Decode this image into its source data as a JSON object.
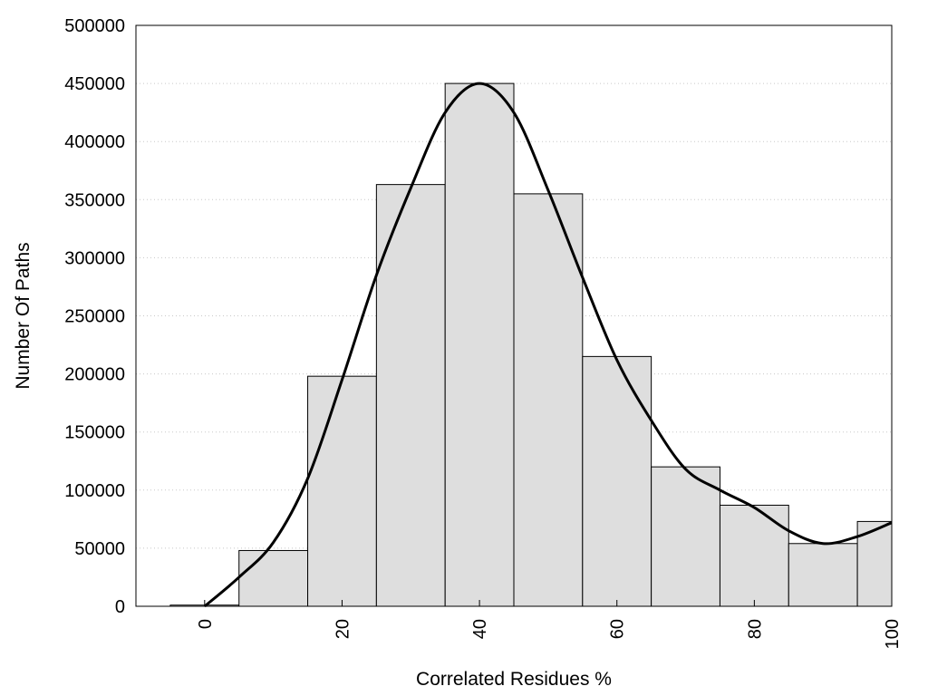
{
  "chart_data": {
    "type": "bar",
    "title": "",
    "xlabel": "Correlated Residues %",
    "ylabel": "Number Of Paths",
    "xlim": [
      -10,
      100
    ],
    "ylim": [
      0,
      500000
    ],
    "bin_width": 10,
    "grid": "horizontal dotted",
    "legend": "none",
    "bar_fill": "#dedede",
    "bar_stroke": "#000000",
    "curve_color": "#000000",
    "x_ticks": [
      "0",
      "20",
      "40",
      "60",
      "80",
      "100"
    ],
    "y_ticks": [
      "0",
      "50000",
      "100000",
      "150000",
      "200000",
      "250000",
      "300000",
      "350000",
      "400000",
      "450000",
      "500000"
    ],
    "bars": [
      {
        "x": 0,
        "value": 1000
      },
      {
        "x": 10,
        "value": 48000
      },
      {
        "x": 20,
        "value": 198000
      },
      {
        "x": 30,
        "value": 363000
      },
      {
        "x": 40,
        "value": 450000
      },
      {
        "x": 50,
        "value": 355000
      },
      {
        "x": 60,
        "value": 215000
      },
      {
        "x": 70,
        "value": 120000
      },
      {
        "x": 80,
        "value": 87000
      },
      {
        "x": 90,
        "value": 54000
      },
      {
        "x": 100,
        "value": 73000
      }
    ],
    "smooth_curve": [
      {
        "x": 0,
        "y": 0
      },
      {
        "x": 5,
        "y": 25000
      },
      {
        "x": 10,
        "y": 55000
      },
      {
        "x": 15,
        "y": 110000
      },
      {
        "x": 20,
        "y": 195000
      },
      {
        "x": 25,
        "y": 285000
      },
      {
        "x": 30,
        "y": 360000
      },
      {
        "x": 35,
        "y": 425000
      },
      {
        "x": 40,
        "y": 450000
      },
      {
        "x": 45,
        "y": 425000
      },
      {
        "x": 50,
        "y": 358000
      },
      {
        "x": 55,
        "y": 283000
      },
      {
        "x": 60,
        "y": 212000
      },
      {
        "x": 65,
        "y": 160000
      },
      {
        "x": 70,
        "y": 118000
      },
      {
        "x": 75,
        "y": 100000
      },
      {
        "x": 80,
        "y": 85000
      },
      {
        "x": 85,
        "y": 65000
      },
      {
        "x": 90,
        "y": 54000
      },
      {
        "x": 95,
        "y": 60000
      },
      {
        "x": 100,
        "y": 72000
      }
    ]
  }
}
